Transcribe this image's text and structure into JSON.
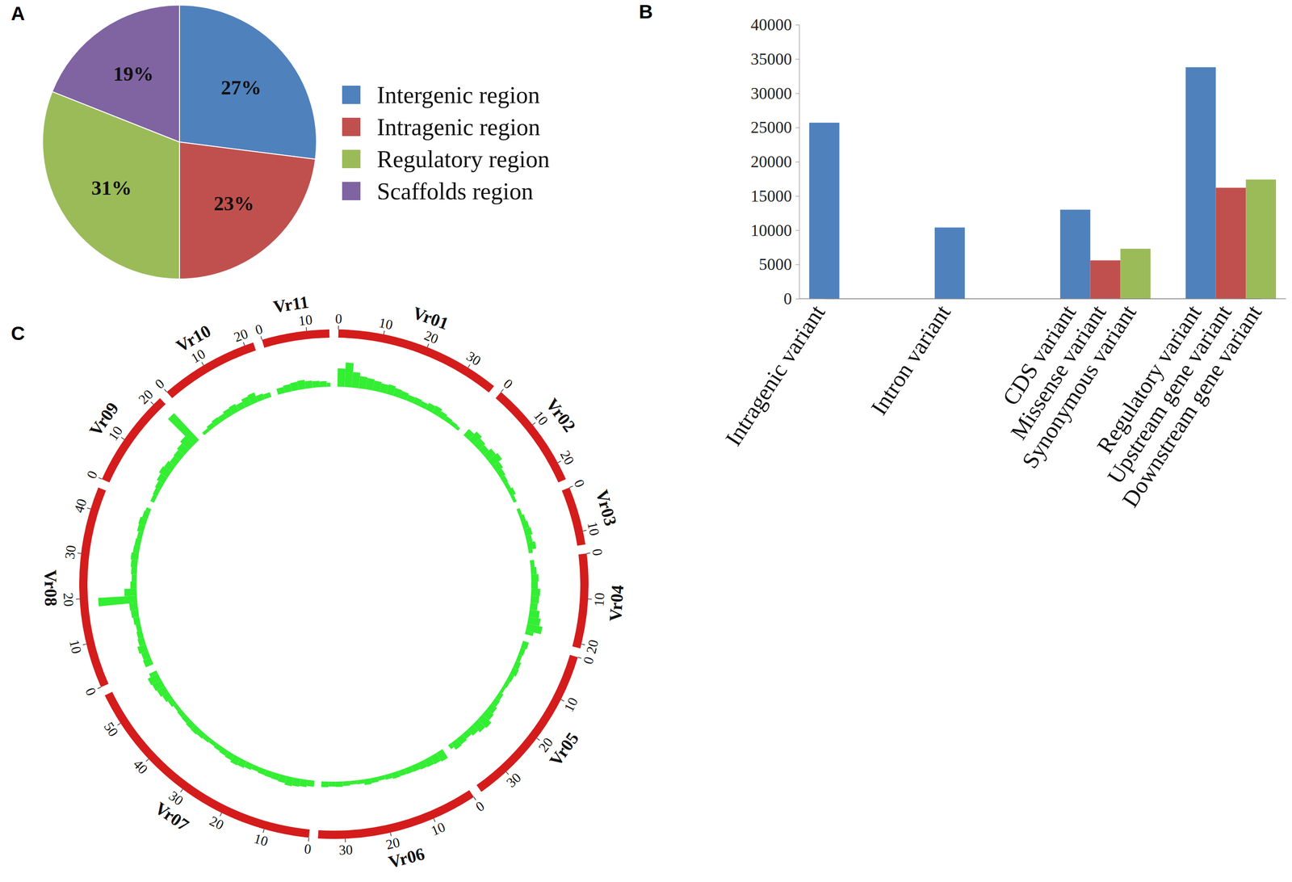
{
  "chart_data": [
    {
      "type": "pie",
      "title": "A",
      "categories": [
        "Intergenic region",
        "Intragenic region",
        "Regulatory region",
        "Scaffolds region"
      ],
      "values": [
        27,
        23,
        31,
        19
      ],
      "value_labels": [
        "27%",
        "23%",
        "31%",
        "19%"
      ],
      "colors": [
        "#4f81bd",
        "#c0504d",
        "#9bbb59",
        "#8064a2"
      ],
      "data_labels": true,
      "legend": "right"
    },
    {
      "type": "bar",
      "title": "B",
      "categories": [
        "Intragenic variant",
        null,
        null,
        "Intron variant",
        null,
        null,
        "CDS variant",
        "Missense variant",
        "Synonymous variant",
        "Regulatory variant",
        "Upstream gene variant",
        "Downstream gene variant"
      ],
      "values": [
        25700,
        null,
        null,
        10400,
        null,
        null,
        13000,
        5600,
        7300,
        33800,
        16200,
        17400
      ],
      "colors": [
        "#4f81bd",
        "#c0504d",
        "#9bbb59",
        "#4f81bd",
        "#c0504d",
        "#9bbb59",
        "#4f81bd",
        "#c0504d",
        "#9bbb59",
        "#4f81bd",
        "#c0504d",
        "#9bbb59"
      ],
      "ylim": [
        0,
        40000
      ],
      "yticks": [
        0,
        5000,
        10000,
        15000,
        20000,
        25000,
        30000,
        35000,
        40000
      ],
      "grid": false
    },
    {
      "type": "circos",
      "title": "C",
      "color": "#33ee33",
      "ylim": [
        0,
        100
      ],
      "series": [
        {
          "name": "Vr01",
          "xlim": [
            0,
            37
          ],
          "xticks": [
            0,
            10,
            20,
            30
          ],
          "bins": [
            0,
            2,
            4,
            6,
            8,
            10,
            12,
            14,
            16,
            18,
            20,
            22,
            24,
            26,
            28,
            30,
            32,
            34,
            36,
            37
          ],
          "values": [
            45,
            60,
            38,
            30,
            28,
            25,
            22,
            24,
            20,
            18,
            15,
            16,
            14,
            18,
            20,
            15,
            12,
            10,
            8
          ]
        },
        {
          "name": "Vr02",
          "xlim": [
            0,
            24
          ],
          "xticks": [
            0,
            10,
            20
          ],
          "bins": [
            0,
            2,
            4,
            6,
            8,
            10,
            12,
            14,
            16,
            18,
            20,
            22,
            24
          ],
          "values": [
            20,
            28,
            22,
            18,
            25,
            30,
            20,
            15,
            12,
            10,
            14,
            8
          ]
        },
        {
          "name": "Vr03",
          "xlim": [
            0,
            13
          ],
          "xticks": [
            0,
            10
          ],
          "bins": [
            0,
            2,
            4,
            6,
            8,
            10,
            12,
            13
          ],
          "values": [
            8,
            12,
            15,
            18,
            14,
            20,
            10
          ]
        },
        {
          "name": "Vr04",
          "xlim": [
            0,
            21
          ],
          "xticks": [
            0,
            10,
            20
          ],
          "bins": [
            0,
            2,
            4,
            6,
            8,
            10,
            12,
            14,
            16,
            18,
            20,
            21
          ],
          "values": [
            10,
            14,
            18,
            16,
            22,
            20,
            18,
            25,
            30,
            38,
            20
          ]
        },
        {
          "name": "Vr05",
          "xlim": [
            0,
            37
          ],
          "xticks": [
            0,
            10,
            20,
            30
          ],
          "bins": [
            0,
            2,
            4,
            6,
            8,
            10,
            12,
            14,
            16,
            18,
            20,
            22,
            24,
            26,
            28,
            30,
            32,
            34,
            36,
            37
          ],
          "values": [
            15,
            12,
            10,
            14,
            16,
            12,
            10,
            8,
            12,
            14,
            18,
            22,
            30,
            26,
            20,
            15,
            18,
            20,
            12
          ]
        },
        {
          "name": "Vr06",
          "xlim": [
            0,
            36
          ],
          "xticks": [
            0,
            10,
            20,
            30
          ],
          "bins": [
            0,
            2,
            4,
            6,
            8,
            10,
            12,
            14,
            16,
            18,
            20,
            22,
            24,
            26,
            28,
            30,
            32,
            34,
            36
          ],
          "values": [
            25,
            22,
            20,
            18,
            16,
            15,
            14,
            15,
            12,
            10,
            12,
            14,
            10,
            9,
            11,
            13,
            12,
            14
          ]
        },
        {
          "name": "Vr07",
          "xlim": [
            0,
            57
          ],
          "xticks": [
            0,
            10,
            20,
            30,
            40,
            50
          ],
          "bins": [
            0,
            2,
            4,
            6,
            8,
            10,
            12,
            14,
            16,
            18,
            20,
            22,
            24,
            26,
            28,
            30,
            32,
            34,
            36,
            38,
            40,
            42,
            44,
            46,
            48,
            50,
            52,
            54,
            56,
            57
          ],
          "values": [
            15,
            18,
            20,
            22,
            18,
            16,
            15,
            14,
            12,
            15,
            18,
            20,
            16,
            14,
            12,
            10,
            12,
            14,
            16,
            15,
            13,
            12,
            10,
            14,
            18,
            22,
            25,
            28,
            20
          ]
        },
        {
          "name": "Vr08",
          "xlim": [
            0,
            45
          ],
          "xticks": [
            0,
            10,
            20,
            30,
            40
          ],
          "bins": [
            0,
            2,
            4,
            6,
            8,
            10,
            12,
            14,
            16,
            18,
            20,
            22,
            24,
            26,
            28,
            30,
            32,
            34,
            36,
            38,
            40,
            42,
            44,
            45
          ],
          "values": [
            20,
            18,
            22,
            16,
            14,
            12,
            15,
            18,
            20,
            95,
            30,
            15,
            12,
            14,
            16,
            18,
            15,
            14,
            12,
            16,
            18,
            14,
            12
          ]
        },
        {
          "name": "Vr09",
          "xlim": [
            0,
            22
          ],
          "xticks": [
            0,
            10,
            20
          ],
          "bins": [
            0,
            2,
            4,
            6,
            8,
            10,
            12,
            14,
            16,
            18,
            20,
            22
          ],
          "values": [
            10,
            12,
            15,
            20,
            25,
            22,
            18,
            20,
            24,
            30,
            90
          ]
        },
        {
          "name": "Vr10",
          "xlim": [
            0,
            22
          ],
          "xticks": [
            0,
            10,
            20
          ],
          "bins": [
            0,
            2,
            4,
            6,
            8,
            10,
            12,
            14,
            16,
            18,
            20,
            22
          ],
          "values": [
            8,
            12,
            15,
            14,
            18,
            20,
            16,
            22,
            25,
            15,
            12
          ]
        },
        {
          "name": "Vr11",
          "xlim": [
            0,
            15
          ],
          "xticks": [
            0,
            10
          ],
          "bins": [
            0,
            2,
            4,
            6,
            8,
            10,
            12,
            14,
            15
          ],
          "values": [
            15,
            18,
            20,
            22,
            18,
            16,
            14,
            10
          ]
        }
      ]
    }
  ]
}
